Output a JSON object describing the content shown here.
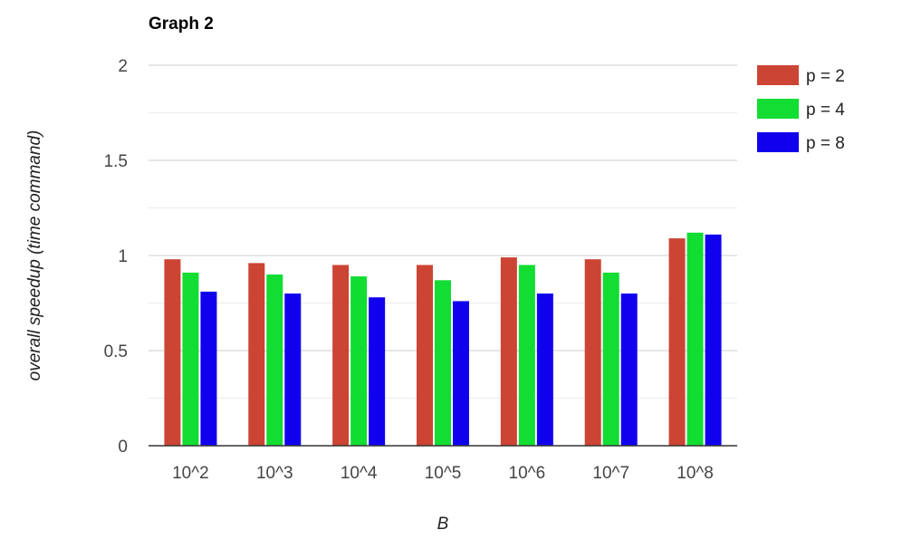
{
  "chart_data": {
    "type": "bar",
    "title": "Graph 2",
    "xlabel": "B",
    "ylabel": "overall speedup (time command)",
    "categories": [
      "10^2",
      "10^3",
      "10^4",
      "10^5",
      "10^6",
      "10^7",
      "10^8"
    ],
    "series": [
      {
        "name": "p = 2",
        "color": "#cc4433",
        "values": [
          0.98,
          0.96,
          0.95,
          0.95,
          0.99,
          0.98,
          1.09
        ]
      },
      {
        "name": "p = 4",
        "color": "#11dd33",
        "values": [
          0.91,
          0.9,
          0.89,
          0.87,
          0.95,
          0.91,
          1.12
        ]
      },
      {
        "name": "p = 8",
        "color": "#1100ee",
        "values": [
          0.81,
          0.8,
          0.78,
          0.76,
          0.8,
          0.8,
          1.11
        ]
      }
    ],
    "ylim": [
      0,
      2
    ],
    "yticks": [
      {
        "value": 0,
        "label": "0"
      },
      {
        "value": 0.5,
        "label": "0.5"
      },
      {
        "value": 1,
        "label": "1"
      },
      {
        "value": 1.5,
        "label": "1.5"
      },
      {
        "value": 2,
        "label": "2"
      }
    ],
    "grid": true,
    "legend": "right"
  }
}
